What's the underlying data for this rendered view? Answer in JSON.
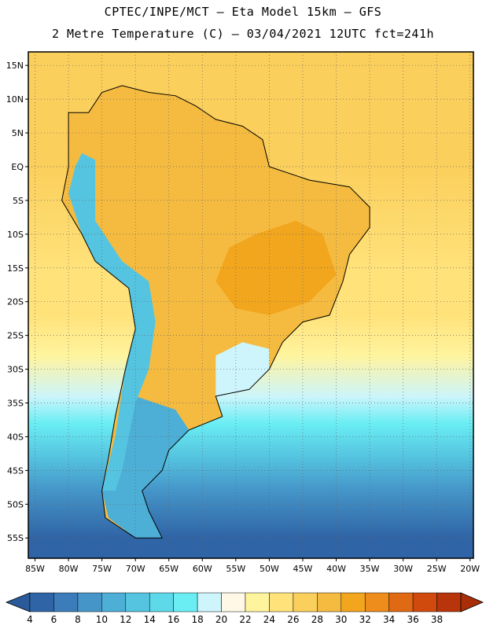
{
  "header": {
    "line1": "CPTEC/INPE/MCT –  Eta Model 15km – GFS",
    "line2": "2 Metre Temperature (C) – 03/04/2021 12UTC fct=241h"
  },
  "map": {
    "lon_range": [
      -86,
      -19.5
    ],
    "lat_range": [
      -58,
      17
    ],
    "lat_ticks": [
      "15N",
      "10N",
      "5N",
      "EQ",
      "5S",
      "10S",
      "15S",
      "20S",
      "25S",
      "30S",
      "35S",
      "40S",
      "45S",
      "50S",
      "55S"
    ],
    "lon_ticks": [
      "85W",
      "80W",
      "75W",
      "70W",
      "65W",
      "60W",
      "55W",
      "50W",
      "45W",
      "40W",
      "35W",
      "30W",
      "25W",
      "20W"
    ],
    "gridlines": "dotted",
    "ocean_gradient_by_latitude": [
      {
        "lat": 17,
        "temp": 26
      },
      {
        "lat": 0,
        "temp": 27
      },
      {
        "lat": -15,
        "temp": 25
      },
      {
        "lat": -22,
        "temp": 24
      },
      {
        "lat": -28,
        "temp": 22
      },
      {
        "lat": -34,
        "temp": 19
      },
      {
        "lat": -38,
        "temp": 16
      },
      {
        "lat": -43,
        "temp": 12
      },
      {
        "lat": -48,
        "temp": 8
      },
      {
        "lat": -55,
        "temp": 5
      }
    ],
    "land_regions": [
      {
        "name": "brazil-interior-hot",
        "temp": 31
      },
      {
        "name": "amazon-basin",
        "temp": 28
      },
      {
        "name": "andes-cold",
        "temp": 12
      },
      {
        "name": "patagonia",
        "temp": 10
      },
      {
        "name": "southern-brazil-uruguay",
        "temp": 19
      }
    ]
  },
  "colorbar": {
    "labels": [
      "4",
      "6",
      "8",
      "10",
      "12",
      "14",
      "16",
      "18",
      "20",
      "22",
      "24",
      "26",
      "28",
      "30",
      "32",
      "34",
      "36",
      "38"
    ],
    "colors": [
      "#2f64a6",
      "#3c7cba",
      "#4595c8",
      "#4daed6",
      "#55c4e0",
      "#5dd9ea",
      "#6aeef4",
      "#cdf5fb",
      "#fff8e6",
      "#fff49e",
      "#ffe27a",
      "#fbcf5c",
      "#f5bb40",
      "#f2a61e",
      "#ee8c1c",
      "#e06914",
      "#cf4a0c",
      "#b8340a"
    ],
    "low_arrow_color": "#2a5a9a",
    "high_arrow_color": "#a82e08"
  }
}
